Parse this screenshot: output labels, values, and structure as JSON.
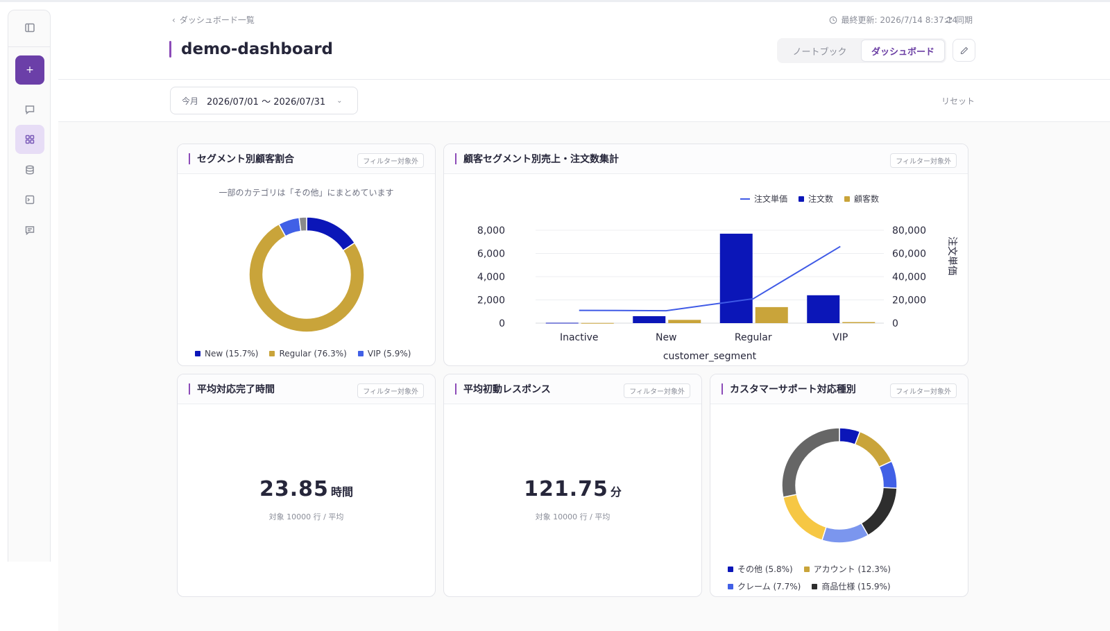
{
  "header": {
    "back_label": "ダッシュボード一覧",
    "updated_label": "最終更新: 2026/7/14 8:37:14",
    "sync_label": "同期",
    "title": "demo-dashboard",
    "view_tabs": [
      "ノートブック",
      "ダッシュボード"
    ],
    "active_tab": "ダッシュボード"
  },
  "sidebar": {
    "new_label": "+",
    "items": [
      "panel-toggle",
      "chat",
      "dashboard",
      "database",
      "terminal",
      "notes"
    ]
  },
  "filter": {
    "period_label": "今月",
    "date_range": "2026/07/01 〜 2026/07/31",
    "reset_label": "リセット"
  },
  "badge_label": "フィルター対象外",
  "cards": {
    "segment_ratio": {
      "title": "セグメント別顧客割合",
      "note": "一部のカテゴリは「その他」にまとめています",
      "legend": [
        "New (15.7%)",
        "Regular (76.3%)",
        "VIP (5.9%)"
      ]
    },
    "segment_sales": {
      "title": "顧客セグメント別売上・注文数集計",
      "legend": [
        "注文単価",
        "注文数",
        "顧客数"
      ],
      "xlabel": "customer_segment",
      "y2label": "注文単価",
      "left_ticks": [
        "8,000",
        "6,000",
        "4,000",
        "2,000",
        "0"
      ],
      "right_ticks": [
        "80,000",
        "60,000",
        "40,000",
        "20,000",
        "0"
      ]
    },
    "avg_completion": {
      "title": "平均対応完了時間",
      "value": "23.85",
      "unit": "時間",
      "sub": "対象 10000 行 / 平均"
    },
    "avg_response": {
      "title": "平均初動レスポンス",
      "value": "121.75",
      "unit": "分",
      "sub": "対象 10000 行 / 平均"
    },
    "support_types": {
      "title": "カスタマーサポート対応種別",
      "legend": [
        "その他 (5.8%)",
        "アカウント (12.3%)",
        "クレーム (7.7%)",
        "商品仕様 (15.9%)"
      ]
    }
  },
  "colors": {
    "accent": "#6b3fa8",
    "navy": "#0b16b8",
    "gold": "#c9a43a",
    "blue": "#4160e6",
    "gray": "#8a8a8a",
    "dark": "#2e2e2e",
    "darkgray": "#666666",
    "lightblue": "#7b96ee",
    "yellow": "#f6c744"
  },
  "chart_data": [
    {
      "type": "pie",
      "title": "セグメント別顧客割合",
      "labels": [
        "New",
        "Regular",
        "VIP",
        "その他"
      ],
      "values": [
        15.7,
        76.3,
        5.9,
        2.1
      ],
      "colors": [
        "#0b16b8",
        "#c9a43a",
        "#4160e6",
        "#8a8a8a"
      ]
    },
    {
      "type": "bar",
      "title": "顧客セグメント別売上・注文数集計",
      "categories": [
        "Inactive",
        "New",
        "Regular",
        "VIP"
      ],
      "xlabel": "customer_segment",
      "ylabel": "",
      "ylim": [
        0,
        8000
      ],
      "y2label": "注文単価",
      "y2lim": [
        0,
        80000
      ],
      "series": [
        {
          "name": "注文数",
          "type": "bar",
          "axis": "left",
          "values": [
            30,
            600,
            7700,
            2400
          ]
        },
        {
          "name": "顧客数",
          "type": "bar",
          "axis": "left",
          "values": [
            15,
            280,
            1380,
            90
          ]
        },
        {
          "name": "注文単価",
          "type": "line",
          "axis": "right",
          "values": [
            11000,
            10700,
            21000,
            66000
          ]
        }
      ]
    },
    {
      "type": "pie",
      "title": "カスタマーサポート対応種別",
      "labels": [
        "その他",
        "アカウント",
        "クレーム",
        "商品仕様",
        "",
        "",
        ""
      ],
      "values": [
        5.8,
        12.3,
        7.7,
        15.9,
        13.2,
        16.8,
        28.3
      ],
      "colors": [
        "#0b16b8",
        "#c9a43a",
        "#4160e6",
        "#2e2e2e",
        "#7b96ee",
        "#f6c744",
        "#666666"
      ]
    }
  ]
}
